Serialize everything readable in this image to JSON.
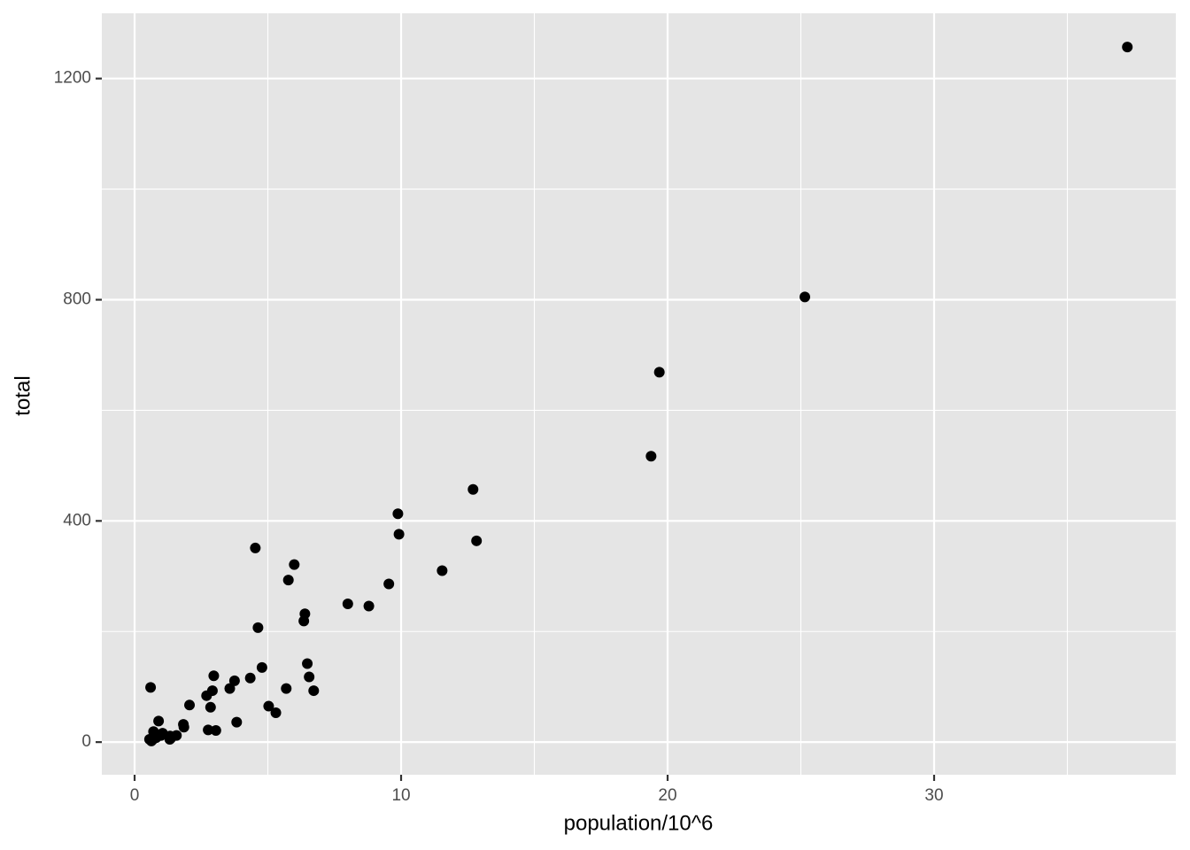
{
  "chart_data": {
    "type": "scatter",
    "x_label": "population/10^6",
    "y_label": "total",
    "x": [
      4.78,
      0.71,
      6.39,
      2.92,
      37.25,
      5.03,
      3.57,
      0.9,
      0.6,
      19.69,
      9.92,
      1.36,
      1.57,
      12.83,
      6.48,
      3.05,
      2.85,
      4.34,
      4.53,
      1.33,
      5.77,
      6.55,
      9.88,
      5.3,
      2.97,
      5.99,
      0.99,
      1.83,
      2.7,
      1.32,
      8.79,
      2.06,
      19.38,
      9.54,
      0.67,
      11.54,
      3.75,
      3.83,
      12.7,
      1.05,
      4.63,
      0.81,
      6.35,
      25.15,
      2.76,
      0.63,
      8.0,
      6.72,
      1.85,
      5.69,
      0.56
    ],
    "y": [
      135,
      19,
      232,
      93,
      1257,
      65,
      97,
      38,
      99,
      669,
      376,
      7,
      12,
      364,
      142,
      21,
      63,
      116,
      351,
      11,
      293,
      118,
      413,
      53,
      120,
      321,
      12,
      32,
      84,
      5,
      246,
      67,
      517,
      286,
      4,
      310,
      111,
      36,
      457,
      16,
      207,
      8,
      219,
      805,
      22,
      2,
      250,
      93,
      27,
      97,
      5
    ],
    "color": "#000000",
    "xlim": [
      -1.23,
      39.07
    ],
    "ylim": [
      -59,
      1318
    ],
    "xticks": [
      0,
      10,
      20,
      30
    ],
    "yticks": [
      0,
      400,
      800,
      1200
    ],
    "x_minor_breaks": [
      5,
      15,
      25,
      35
    ],
    "y_minor_breaks": [
      200,
      600,
      1000
    ],
    "grid": true,
    "panel_color": "#e5e5e5"
  }
}
